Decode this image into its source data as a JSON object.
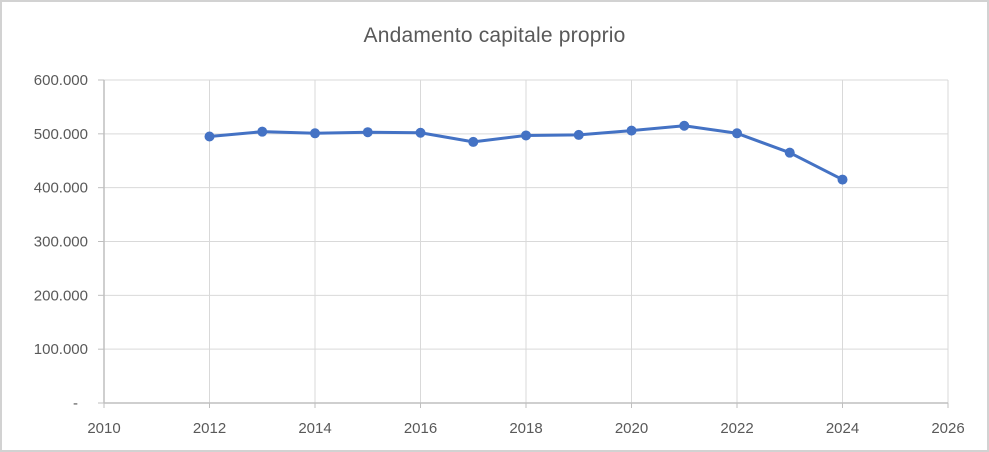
{
  "chart_data": {
    "type": "line",
    "title": "Andamento capitale proprio",
    "x": [
      2012,
      2013,
      2014,
      2015,
      2016,
      2017,
      2018,
      2019,
      2020,
      2021,
      2022,
      2023,
      2024
    ],
    "values": [
      495000,
      504000,
      501000,
      503000,
      502000,
      485000,
      497000,
      498000,
      506000,
      515000,
      501000,
      465000,
      415000
    ],
    "xlabel": "",
    "ylabel": "",
    "xlim": [
      2010,
      2026
    ],
    "ylim": [
      0,
      600000
    ],
    "x_tick_step": 2,
    "y_tick_step": 100000,
    "x_tick_labels": [
      "2010",
      "2012",
      "2014",
      "2016",
      "2018",
      "2020",
      "2022",
      "2024",
      "2026"
    ],
    "y_tick_labels": [
      "-",
      "100.000",
      "200.000",
      "300.000",
      "400.000",
      "500.000",
      "600.000"
    ],
    "grid": true,
    "legend": false,
    "marker": "circle",
    "colors": {
      "line": "#4472C4",
      "marker": "#4472C4",
      "gridline": "#D9D9D9",
      "axis_line": "#BFBFBF",
      "text": "#595959",
      "background": "#FFFFFF"
    }
  }
}
